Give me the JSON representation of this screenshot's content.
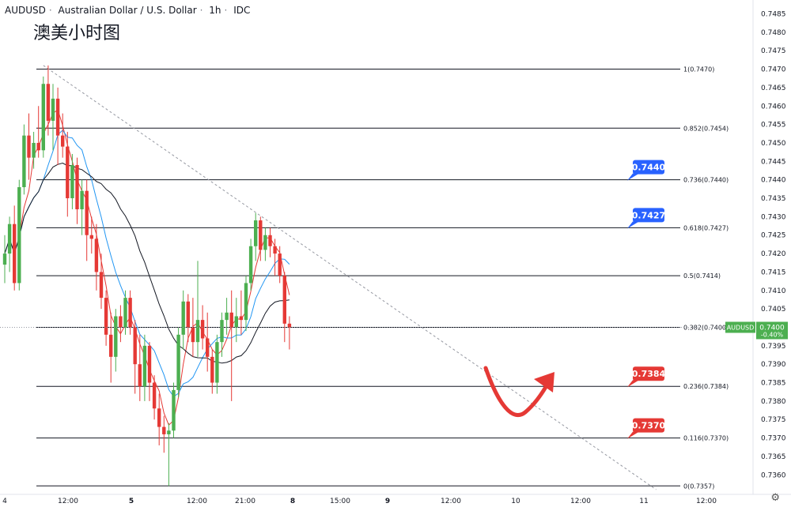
{
  "header": {
    "symbol": "AUDUSD",
    "name": "Australian Dollar / U.S. Dollar",
    "interval": "1h",
    "exchange": "IDC",
    "title_cn": "澳美小时图"
  },
  "colors": {
    "up": "#4caf50",
    "down": "#e53935",
    "ma_fast": "#e53935",
    "ma_mid": "#2196f3",
    "ma_slow": "#131722",
    "target_label": "#2962ff",
    "support_label": "#e53935",
    "arrow": "#e53935",
    "price_label": "#4caf50"
  },
  "chart_data": {
    "type": "line",
    "title": "",
    "ylim": [
      0.7355,
      0.7488
    ],
    "y_ticks": [
      "0.7485",
      "0.7480",
      "0.7475",
      "0.7470",
      "0.7465",
      "0.7460",
      "0.7455",
      "0.7450",
      "0.7445",
      "0.7440",
      "0.7435",
      "0.7430",
      "0.7425",
      "0.7420",
      "0.7415",
      "0.7410",
      "0.7405",
      "0.7400",
      "0.7395",
      "0.7390",
      "0.7385",
      "0.7380",
      "0.7375",
      "0.7370",
      "0.7365",
      "0.7360"
    ],
    "x_tick_labels": [
      "4",
      "12:00",
      "5",
      "12:00",
      "21:00",
      "8",
      "15:00",
      "9",
      "12:00",
      "10",
      "12:00",
      "11",
      "12:00"
    ],
    "candles": [
      {
        "o": 0.7417,
        "h": 0.7425,
        "l": 0.7412,
        "c": 0.742
      },
      {
        "o": 0.742,
        "h": 0.743,
        "l": 0.7415,
        "c": 0.7428
      },
      {
        "o": 0.7428,
        "h": 0.7433,
        "l": 0.741,
        "c": 0.7412
      },
      {
        "o": 0.7412,
        "h": 0.744,
        "l": 0.741,
        "c": 0.7438
      },
      {
        "o": 0.7438,
        "h": 0.7455,
        "l": 0.7436,
        "c": 0.7452
      },
      {
        "o": 0.7452,
        "h": 0.7458,
        "l": 0.744,
        "c": 0.7446
      },
      {
        "o": 0.7446,
        "h": 0.7453,
        "l": 0.7443,
        "c": 0.745
      },
      {
        "o": 0.745,
        "h": 0.746,
        "l": 0.7446,
        "c": 0.7448
      },
      {
        "o": 0.7448,
        "h": 0.7468,
        "l": 0.7446,
        "c": 0.7466
      },
      {
        "o": 0.7466,
        "h": 0.7471,
        "l": 0.7452,
        "c": 0.7456
      },
      {
        "o": 0.7456,
        "h": 0.7466,
        "l": 0.7448,
        "c": 0.7462
      },
      {
        "o": 0.7462,
        "h": 0.7465,
        "l": 0.7444,
        "c": 0.7452
      },
      {
        "o": 0.7452,
        "h": 0.7458,
        "l": 0.7446,
        "c": 0.7449
      },
      {
        "o": 0.7449,
        "h": 0.7453,
        "l": 0.743,
        "c": 0.7435
      },
      {
        "o": 0.7435,
        "h": 0.7447,
        "l": 0.7432,
        "c": 0.7444
      },
      {
        "o": 0.7444,
        "h": 0.7446,
        "l": 0.7428,
        "c": 0.7432
      },
      {
        "o": 0.7432,
        "h": 0.744,
        "l": 0.7425,
        "c": 0.7437
      },
      {
        "o": 0.7437,
        "h": 0.744,
        "l": 0.7418,
        "c": 0.7425
      },
      {
        "o": 0.7425,
        "h": 0.743,
        "l": 0.742,
        "c": 0.7424
      },
      {
        "o": 0.7424,
        "h": 0.7428,
        "l": 0.741,
        "c": 0.7415
      },
      {
        "o": 0.7415,
        "h": 0.742,
        "l": 0.7405,
        "c": 0.7408
      },
      {
        "o": 0.7408,
        "h": 0.741,
        "l": 0.7395,
        "c": 0.7398
      },
      {
        "o": 0.7398,
        "h": 0.7404,
        "l": 0.7385,
        "c": 0.7392
      },
      {
        "o": 0.7392,
        "h": 0.7405,
        "l": 0.7388,
        "c": 0.7403
      },
      {
        "o": 0.7403,
        "h": 0.7406,
        "l": 0.7396,
        "c": 0.74
      },
      {
        "o": 0.74,
        "h": 0.741,
        "l": 0.7398,
        "c": 0.7408
      },
      {
        "o": 0.7408,
        "h": 0.741,
        "l": 0.7398,
        "c": 0.74
      },
      {
        "o": 0.74,
        "h": 0.7402,
        "l": 0.7382,
        "c": 0.739
      },
      {
        "o": 0.739,
        "h": 0.7398,
        "l": 0.738,
        "c": 0.7384
      },
      {
        "o": 0.7384,
        "h": 0.7398,
        "l": 0.738,
        "c": 0.7395
      },
      {
        "o": 0.7395,
        "h": 0.7396,
        "l": 0.738,
        "c": 0.7385
      },
      {
        "o": 0.7385,
        "h": 0.7387,
        "l": 0.7375,
        "c": 0.7378
      },
      {
        "o": 0.7378,
        "h": 0.7382,
        "l": 0.7368,
        "c": 0.7373
      },
      {
        "o": 0.7373,
        "h": 0.7376,
        "l": 0.7366,
        "c": 0.7371
      },
      {
        "o": 0.7371,
        "h": 0.7374,
        "l": 0.7357,
        "c": 0.7372
      },
      {
        "o": 0.7372,
        "h": 0.7385,
        "l": 0.737,
        "c": 0.7383
      },
      {
        "o": 0.7383,
        "h": 0.74,
        "l": 0.7381,
        "c": 0.7398
      },
      {
        "o": 0.7398,
        "h": 0.741,
        "l": 0.7394,
        "c": 0.7407
      },
      {
        "o": 0.7407,
        "h": 0.7409,
        "l": 0.7396,
        "c": 0.74
      },
      {
        "o": 0.74,
        "h": 0.7408,
        "l": 0.7392,
        "c": 0.7396
      },
      {
        "o": 0.7396,
        "h": 0.7418,
        "l": 0.7392,
        "c": 0.7402
      },
      {
        "o": 0.7402,
        "h": 0.7406,
        "l": 0.7394,
        "c": 0.7397
      },
      {
        "o": 0.7397,
        "h": 0.7404,
        "l": 0.7388,
        "c": 0.7392
      },
      {
        "o": 0.7392,
        "h": 0.7394,
        "l": 0.7382,
        "c": 0.7385
      },
      {
        "o": 0.7385,
        "h": 0.7398,
        "l": 0.7382,
        "c": 0.7396
      },
      {
        "o": 0.7396,
        "h": 0.7404,
        "l": 0.7392,
        "c": 0.7402
      },
      {
        "o": 0.7402,
        "h": 0.7408,
        "l": 0.7398,
        "c": 0.7404
      },
      {
        "o": 0.7404,
        "h": 0.741,
        "l": 0.738,
        "c": 0.74
      },
      {
        "o": 0.74,
        "h": 0.7408,
        "l": 0.7396,
        "c": 0.7403
      },
      {
        "o": 0.7403,
        "h": 0.741,
        "l": 0.7398,
        "c": 0.7402
      },
      {
        "o": 0.7402,
        "h": 0.7414,
        "l": 0.7399,
        "c": 0.7412
      },
      {
        "o": 0.7412,
        "h": 0.7424,
        "l": 0.741,
        "c": 0.7422
      },
      {
        "o": 0.7422,
        "h": 0.7431,
        "l": 0.7418,
        "c": 0.7429
      },
      {
        "o": 0.7429,
        "h": 0.743,
        "l": 0.7418,
        "c": 0.7421
      },
      {
        "o": 0.7421,
        "h": 0.7427,
        "l": 0.7418,
        "c": 0.7425
      },
      {
        "o": 0.7425,
        "h": 0.7427,
        "l": 0.7419,
        "c": 0.7422
      },
      {
        "o": 0.7422,
        "h": 0.7424,
        "l": 0.7414,
        "c": 0.742
      },
      {
        "o": 0.742,
        "h": 0.7422,
        "l": 0.7412,
        "c": 0.7414
      },
      {
        "o": 0.7414,
        "h": 0.7415,
        "l": 0.7396,
        "c": 0.7401
      },
      {
        "o": 0.7401,
        "h": 0.7403,
        "l": 0.7394,
        "c": 0.74
      }
    ],
    "fibonacci": {
      "levels": [
        {
          "label": "1(0.7470)",
          "value": 0.747
        },
        {
          "label": "0.852(0.7454)",
          "value": 0.7454
        },
        {
          "label": "0.736(0.7440)",
          "value": 0.744
        },
        {
          "label": "0.618(0.7427)",
          "value": 0.7427
        },
        {
          "label": "0.5(0.7414)",
          "value": 0.7414
        },
        {
          "label": "0.382(0.7400)",
          "value": 0.74
        },
        {
          "label": "0.236(0.7384)",
          "value": 0.7384
        },
        {
          "label": "0.116(0.7370)",
          "value": 0.737
        },
        {
          "label": "0(0.7357)",
          "value": 0.7357
        }
      ]
    },
    "price_tags": [
      {
        "label": "0.7440",
        "value": 0.744,
        "kind": "target"
      },
      {
        "label": "0.7427",
        "value": 0.7427,
        "kind": "target"
      },
      {
        "label": "0.7384",
        "value": 0.7384,
        "kind": "support"
      },
      {
        "label": "0.7370",
        "value": 0.737,
        "kind": "support"
      }
    ],
    "current_price": {
      "symbol": "AUDUSD",
      "value": "0.7400",
      "change": "-0.40%",
      "level": 0.74
    },
    "trendline": {
      "start_bar": 8,
      "start_price": 0.7471,
      "end_bar": 135,
      "end_price": 0.7356
    }
  }
}
